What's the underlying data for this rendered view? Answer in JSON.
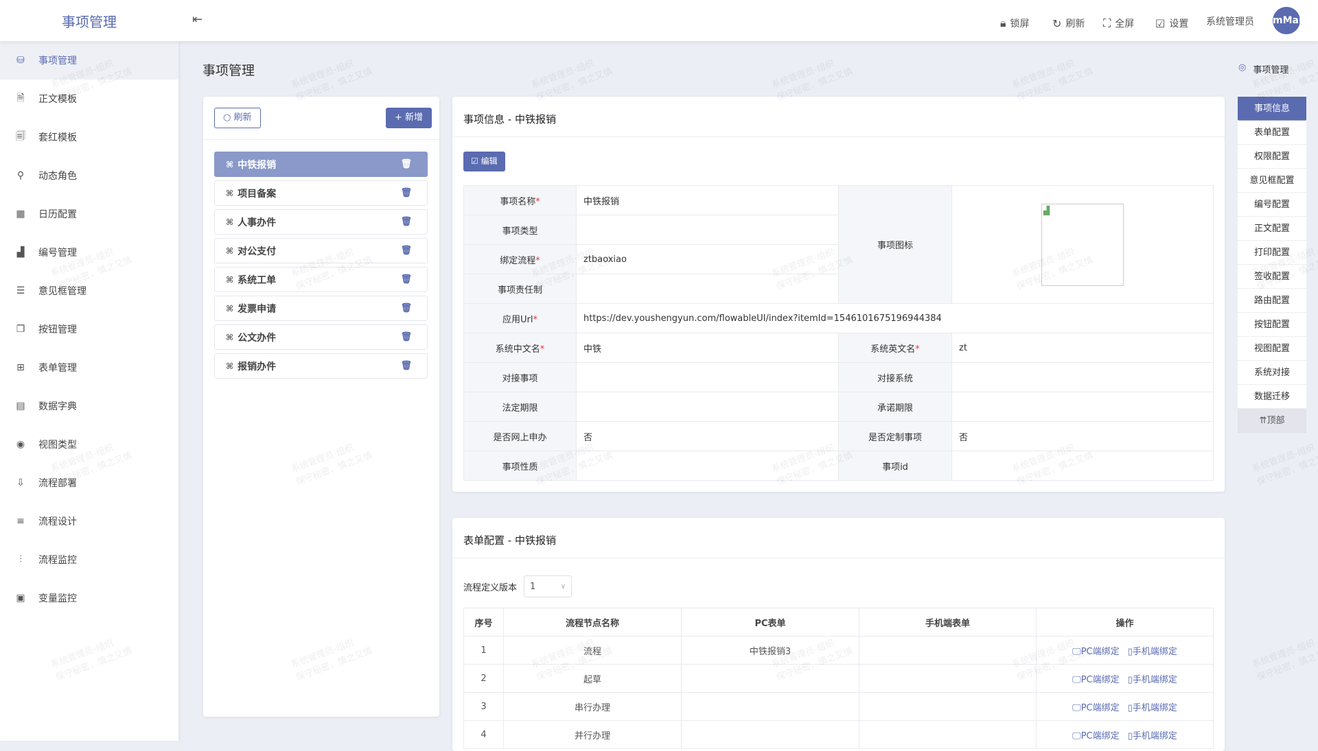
{
  "header": {
    "logo": "事项管理",
    "lock": "锁屏",
    "refresh": "刷新",
    "fullscreen": "全屏",
    "settings": "设置",
    "user": "系统管理员",
    "avatar": "mMar"
  },
  "sidebar": {
    "items": [
      {
        "label": "事项管理",
        "icon": "database-icon"
      },
      {
        "label": "正文模板",
        "icon": "word-doc-icon"
      },
      {
        "label": "套红模板",
        "icon": "word-template-icon"
      },
      {
        "label": "动态角色",
        "icon": "user-icon"
      },
      {
        "label": "日历配置",
        "icon": "calendar-icon"
      },
      {
        "label": "编号管理",
        "icon": "bar-chart-icon"
      },
      {
        "label": "意见框管理",
        "icon": "form-icon"
      },
      {
        "label": "按钮管理",
        "icon": "copy-icon"
      },
      {
        "label": "表单管理",
        "icon": "table-icon"
      },
      {
        "label": "数据字典",
        "icon": "dictionary-icon"
      },
      {
        "label": "视图类型",
        "icon": "eye-icon"
      },
      {
        "label": "流程部署",
        "icon": "deploy-icon"
      },
      {
        "label": "流程设计",
        "icon": "design-icon"
      },
      {
        "label": "流程监控",
        "icon": "sliders-icon"
      },
      {
        "label": "变量监控",
        "icon": "monitor-icon"
      }
    ]
  },
  "page": {
    "title": "事项管理",
    "breadcrumb": "事项管理"
  },
  "list": {
    "refresh": "刷新",
    "add": "+ 新增",
    "items": [
      "中铁报销",
      "项目备案",
      "人事办件",
      "对公支付",
      "系统工单",
      "发票申请",
      "公文办件",
      "报销办件"
    ]
  },
  "info": {
    "title": "事项信息 - 中铁报销",
    "edit": "编辑",
    "l": {
      "name": "事项名称",
      "type": "事项类型",
      "flow": "绑定流程",
      "resp": "事项责任制",
      "icon": "事项图标",
      "url": "应用Url",
      "cn": "系统中文名",
      "en": "系统英文名",
      "ditem": "对接事项",
      "dsys": "对接系统",
      "legal": "法定期限",
      "promise": "承诺期限",
      "online": "是否网上申办",
      "custom": "是否定制事项",
      "nature": "事项性质",
      "id": "事项id"
    },
    "v": {
      "name": "中铁报销",
      "type": "",
      "flow": "ztbaoxiao",
      "resp": "",
      "url": "https://dev.youshengyun.com/flowableUI/index?itemId=1546101675196944384",
      "cn": "中铁",
      "en": "zt",
      "ditem": "",
      "dsys": "",
      "legal": "",
      "promise": "",
      "online": "否",
      "custom": "否",
      "nature": "",
      "id": ""
    }
  },
  "form": {
    "title": "表单配置 - 中铁报销",
    "version_label": "流程定义版本",
    "version": "1",
    "columns": [
      "序号",
      "流程节点名称",
      "PC表单",
      "手机端表单",
      "操作"
    ],
    "rows": [
      {
        "no": "1",
        "node": "流程",
        "pc": "中铁报销3",
        "mobile": ""
      },
      {
        "no": "2",
        "node": "起草",
        "pc": "",
        "mobile": ""
      },
      {
        "no": "3",
        "node": "串行办理",
        "pc": "",
        "mobile": ""
      },
      {
        "no": "4",
        "node": "并行办理",
        "pc": "",
        "mobile": ""
      }
    ],
    "op_pc": "PC端绑定",
    "op_mobile": "手机端绑定"
  },
  "rightnav": {
    "items": [
      "事项信息",
      "表单配置",
      "权限配置",
      "意见框配置",
      "编号配置",
      "正文配置",
      "打印配置",
      "签收配置",
      "路由配置",
      "按钮配置",
      "视图配置",
      "系统对接",
      "数据迁移"
    ],
    "top": "⇈顶部"
  },
  "watermark": "系统管理员-组织\n保守秘密，慎之又慎",
  "colors": {
    "accent": "#5a6bb0",
    "active_list": "#8a99c9",
    "background": "#eceef5"
  }
}
